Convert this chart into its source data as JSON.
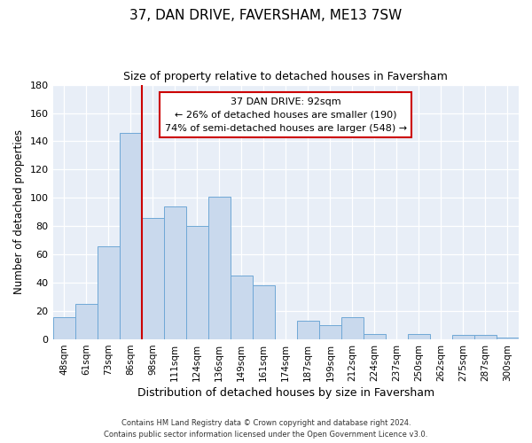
{
  "title": "37, DAN DRIVE, FAVERSHAM, ME13 7SW",
  "subtitle": "Size of property relative to detached houses in Faversham",
  "xlabel": "Distribution of detached houses by size in Faversham",
  "ylabel": "Number of detached properties",
  "bar_labels": [
    "48sqm",
    "61sqm",
    "73sqm",
    "86sqm",
    "98sqm",
    "111sqm",
    "124sqm",
    "136sqm",
    "149sqm",
    "161sqm",
    "174sqm",
    "187sqm",
    "199sqm",
    "212sqm",
    "224sqm",
    "237sqm",
    "250sqm",
    "262sqm",
    "275sqm",
    "287sqm",
    "300sqm"
  ],
  "bar_values": [
    16,
    25,
    66,
    146,
    86,
    94,
    80,
    101,
    45,
    38,
    0,
    13,
    10,
    16,
    4,
    0,
    4,
    0,
    3,
    3,
    1
  ],
  "bar_color": "#c9d9ed",
  "bar_edge_color": "#6fa8d6",
  "ylim": [
    0,
    180
  ],
  "yticks": [
    0,
    20,
    40,
    60,
    80,
    100,
    120,
    140,
    160,
    180
  ],
  "vline_x_index": 3,
  "vline_color": "#cc0000",
  "annotation_title": "37 DAN DRIVE: 92sqm",
  "annotation_line1": "← 26% of detached houses are smaller (190)",
  "annotation_line2": "74% of semi-detached houses are larger (548) →",
  "annotation_box_color": "#ffffff",
  "annotation_box_edge": "#cc0000",
  "footer1": "Contains HM Land Registry data © Crown copyright and database right 2024.",
  "footer2": "Contains public sector information licensed under the Open Government Licence v3.0.",
  "plot_bg_color": "#e8eef7",
  "fig_bg_color": "#ffffff",
  "title_fontsize": 11,
  "subtitle_fontsize": 9,
  "grid_color": "#ffffff"
}
